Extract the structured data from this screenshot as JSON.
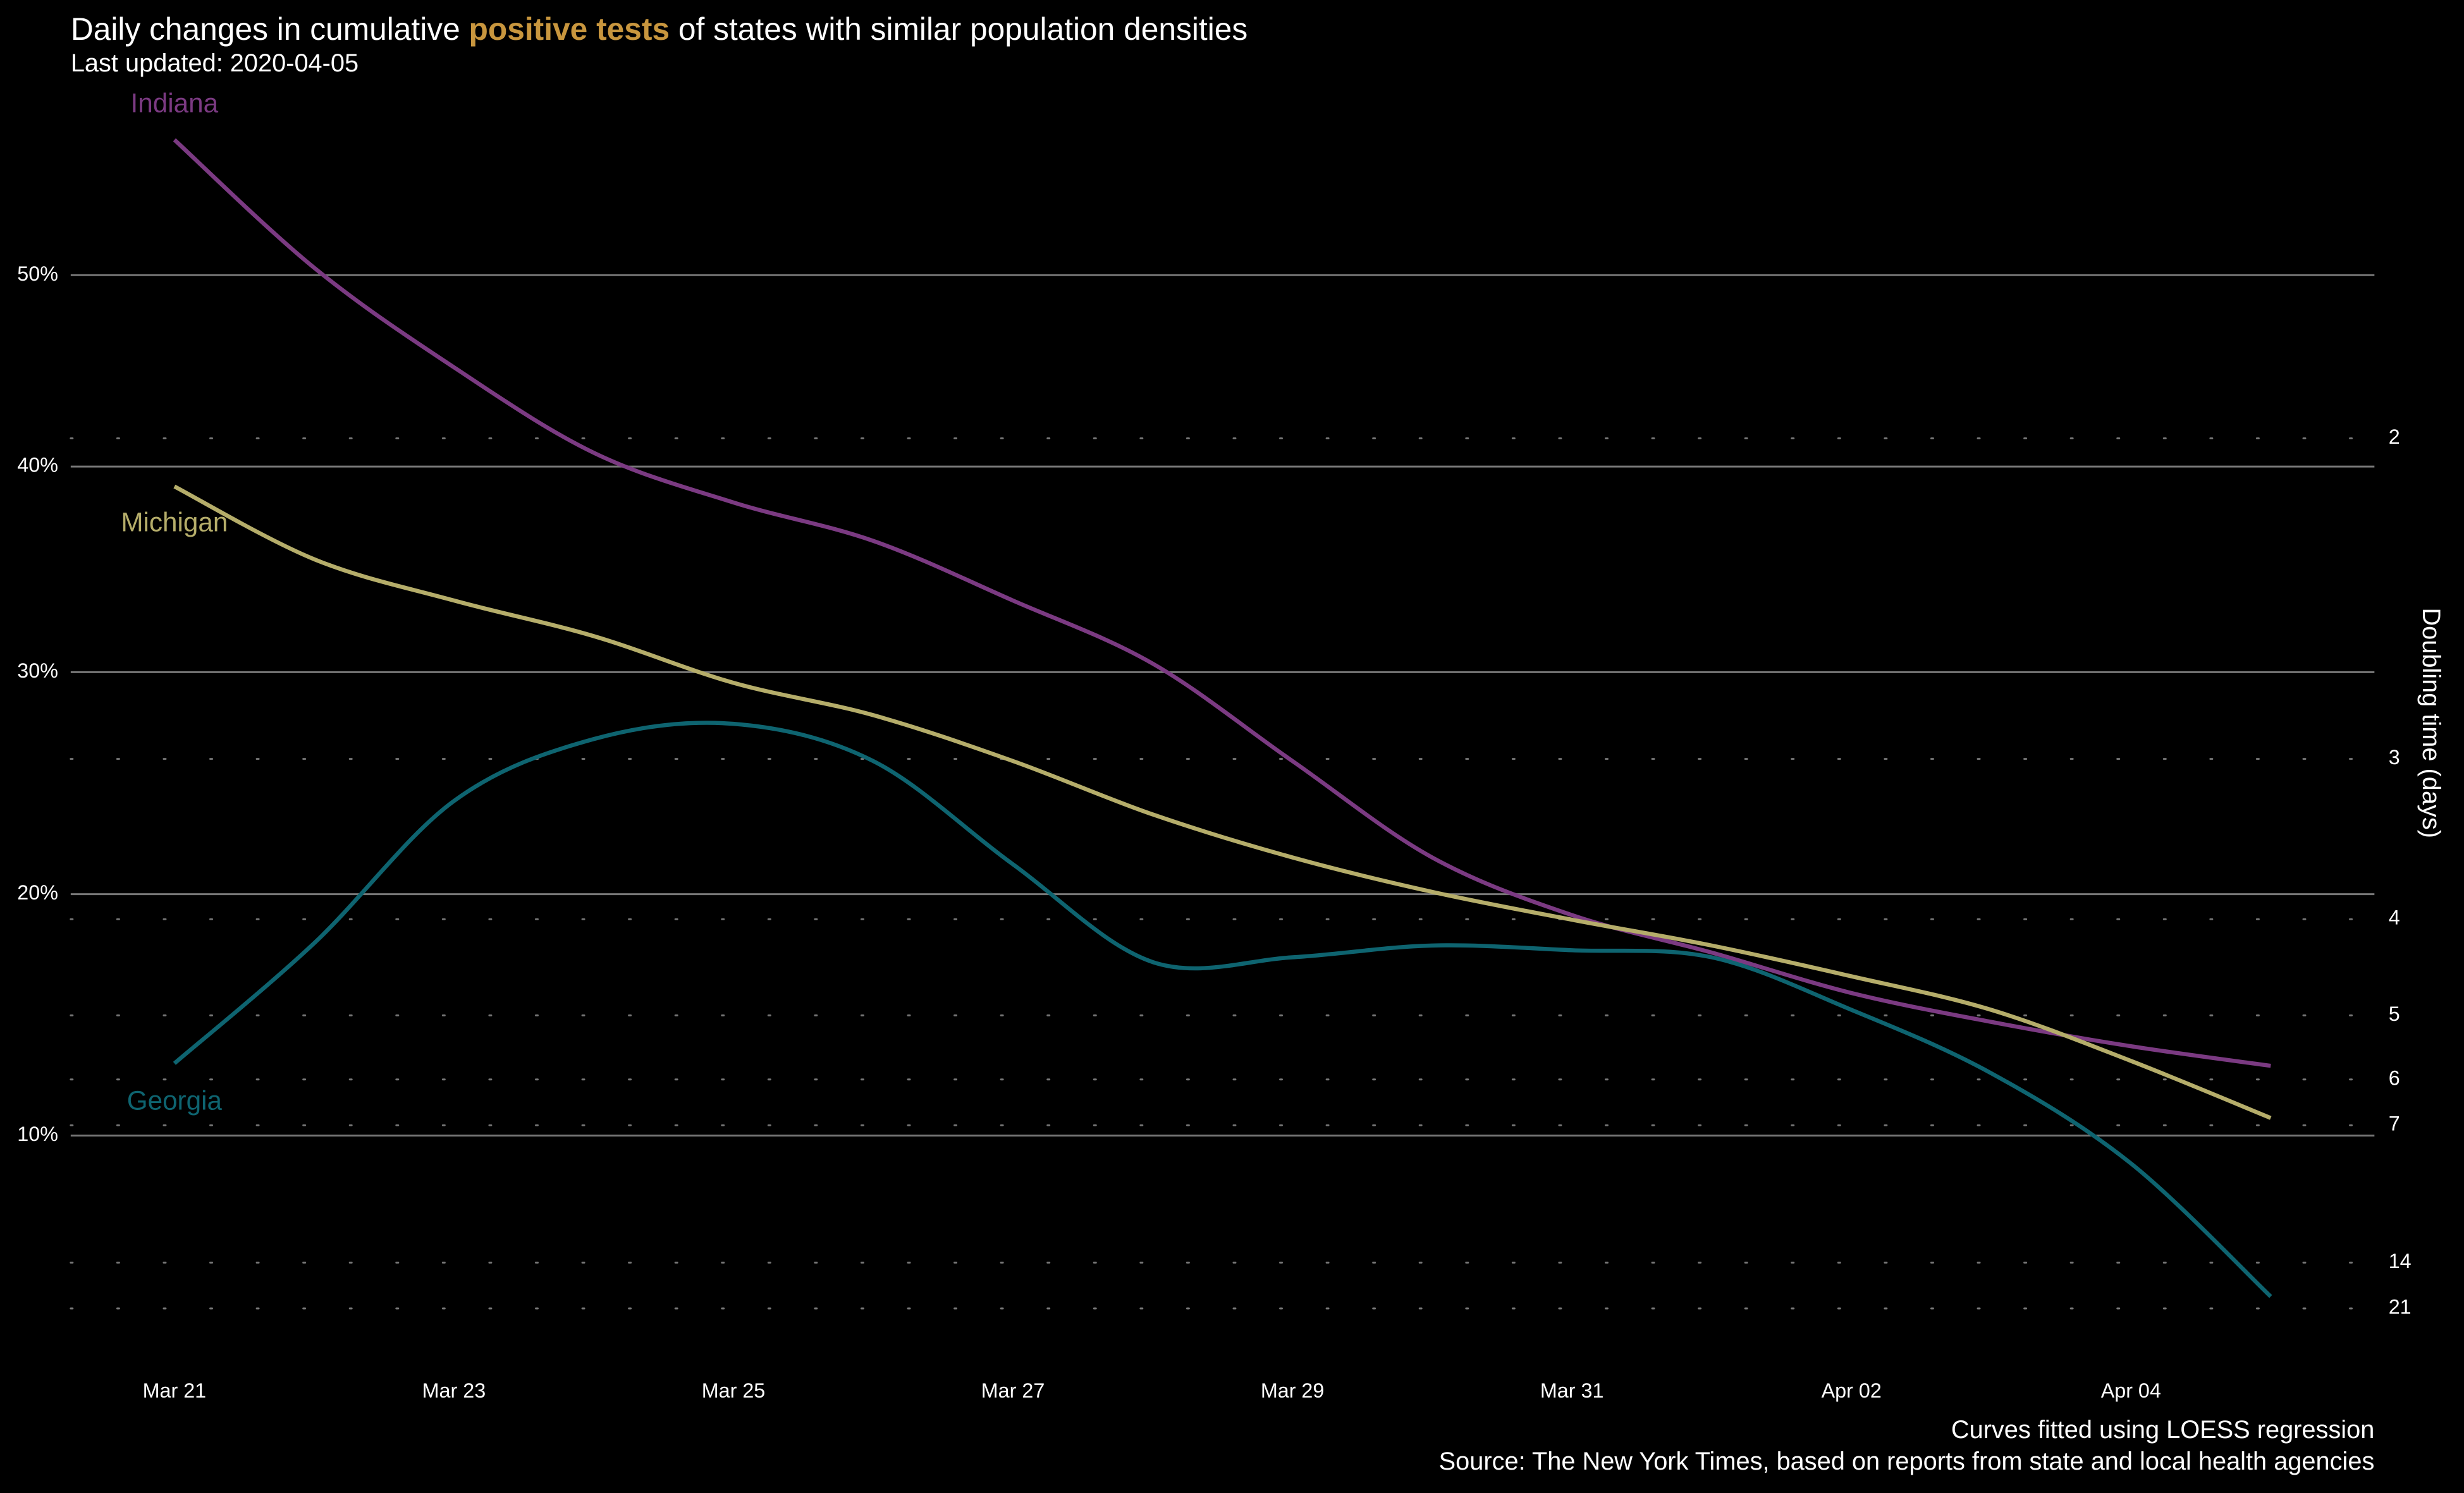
{
  "chart_data": {
    "type": "line",
    "title": [
      "Daily changes in cumulative ",
      "positive tests",
      " of states with similar population densities"
    ],
    "title_highlight_color": "#c8963e",
    "subtitle": "Last updated: 2020-04-05",
    "y2label": "Doubling time (days)",
    "notes": [
      "Curves fitted using LOESS regression",
      "Source: The New York Times, based on reports from state and local health agencies"
    ],
    "categories": [
      "Mar 21",
      null,
      "Mar 23",
      null,
      "Mar 25",
      null,
      "Mar 27",
      null,
      "Mar 29",
      null,
      "Mar 31",
      null,
      "Apr 02",
      null,
      "Apr 04",
      null
    ],
    "series": [
      {
        "name": "Indiana",
        "color": "#7b3a82",
        "values": [
          57.5,
          50.4,
          45.1,
          40.7,
          38.2,
          36.3,
          33.4,
          30.4,
          25.9,
          21.6,
          19.1,
          17.5,
          15.8,
          14.6,
          13.6,
          12.8
        ]
      },
      {
        "name": "Michigan",
        "color": "#b5ad6a",
        "values": [
          39.0,
          35.4,
          33.4,
          31.7,
          29.5,
          28.0,
          25.9,
          23.5,
          21.6,
          20.1,
          18.9,
          17.8,
          16.5,
          15.1,
          13.0,
          10.7
        ]
      },
      {
        "name": "Georgia",
        "color": "#0e6470",
        "values": [
          12.9,
          17.9,
          24.1,
          26.9,
          27.6,
          25.9,
          21.3,
          17.1,
          17.3,
          17.8,
          17.6,
          17.3,
          15.1,
          12.5,
          8.9,
          3.8
        ]
      }
    ],
    "y_scale": "log1p",
    "ylim": [
      2,
      60
    ],
    "yticks": [
      {
        "value": 10,
        "label": "10%"
      },
      {
        "value": 20,
        "label": "20%"
      },
      {
        "value": 30,
        "label": "30%"
      },
      {
        "value": 40,
        "label": "40%"
      },
      {
        "value": 50,
        "label": "50%"
      }
    ],
    "y2lim": [
      35,
      1.475
    ],
    "y2ticks": [
      2,
      3,
      4,
      5,
      6,
      7,
      14,
      21
    ],
    "grid": true
  }
}
